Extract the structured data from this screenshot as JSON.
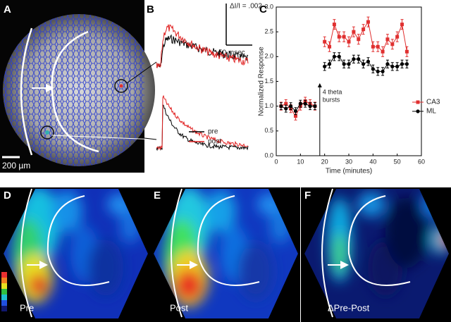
{
  "panel_labels": [
    "A",
    "B",
    "C",
    "D",
    "E",
    "F"
  ],
  "panel_a": {
    "scale_bar": "200 µm"
  },
  "panel_b": {
    "amplitude_scale": "ΔI/I = .002",
    "time_scale": "50 msec",
    "legend": [
      {
        "name": "pre",
        "color": "#000000"
      },
      {
        "name": "post",
        "color": "#e02020"
      }
    ]
  },
  "chart_data": {
    "type": "line",
    "x_label": "Time (minutes)",
    "y_label": "Normalized Response",
    "x": [
      2,
      4,
      6,
      8,
      10,
      12,
      14,
      16,
      18,
      20,
      22,
      24,
      26,
      28,
      30,
      32,
      34,
      36,
      38,
      40,
      42,
      44,
      46,
      48,
      50,
      52,
      54
    ],
    "series": [
      {
        "name": "CA3",
        "color": "#e03030",
        "marker": "square",
        "values": [
          1.0,
          1.05,
          0.95,
          0.8,
          1.0,
          1.1,
          1.05,
          1.0,
          null,
          2.3,
          2.2,
          2.65,
          2.4,
          2.4,
          2.3,
          2.5,
          2.35,
          2.55,
          2.7,
          2.2,
          2.2,
          2.1,
          2.35,
          2.25,
          2.4,
          2.65,
          2.1
        ],
        "errors": [
          0.08,
          0.08,
          0.08,
          0.08,
          0.08,
          0.08,
          0.08,
          0.08,
          null,
          0.1,
          0.1,
          0.1,
          0.1,
          0.1,
          0.1,
          0.1,
          0.1,
          0.1,
          0.1,
          0.1,
          0.1,
          0.1,
          0.1,
          0.1,
          0.1,
          0.1,
          0.1
        ]
      },
      {
        "name": "ML",
        "color": "#000000",
        "marker": "circle",
        "values": [
          1.0,
          0.95,
          1.0,
          0.9,
          1.05,
          1.05,
          1.0,
          1.0,
          null,
          1.8,
          1.85,
          2.0,
          2.0,
          1.85,
          1.85,
          1.95,
          1.95,
          1.85,
          1.9,
          1.75,
          1.7,
          1.7,
          1.85,
          1.8,
          1.8,
          1.85,
          1.85
        ],
        "errors": [
          0.07,
          0.07,
          0.07,
          0.07,
          0.07,
          0.07,
          0.07,
          0.07,
          null,
          0.08,
          0.08,
          0.08,
          0.08,
          0.08,
          0.08,
          0.08,
          0.08,
          0.08,
          0.08,
          0.08,
          0.08,
          0.08,
          0.08,
          0.08,
          0.08,
          0.08,
          0.08
        ]
      }
    ],
    "xlim": [
      0,
      60
    ],
    "xticks": [
      0,
      10,
      20,
      30,
      40,
      50,
      60
    ],
    "ylim": [
      0,
      3
    ],
    "yticks": [
      {
        "value": 0,
        "label": "0.0"
      },
      {
        "value": 0.5,
        "label": "0.5"
      },
      {
        "value": 1,
        "label": "1.0"
      },
      {
        "value": 1.5,
        "label": "1.5"
      },
      {
        "value": 2,
        "label": "2.0"
      },
      {
        "value": 2.5,
        "label": "2.5"
      },
      {
        "value": 3,
        "label": "3.0"
      }
    ],
    "grid": false,
    "legend_position": "right",
    "annotation": {
      "lines": [
        "4 theta",
        "bursts"
      ],
      "x": 18,
      "y": 1.45
    }
  },
  "heatmaps": {
    "captions": [
      "Pre",
      "Post",
      "ΔPre-Post"
    ]
  }
}
